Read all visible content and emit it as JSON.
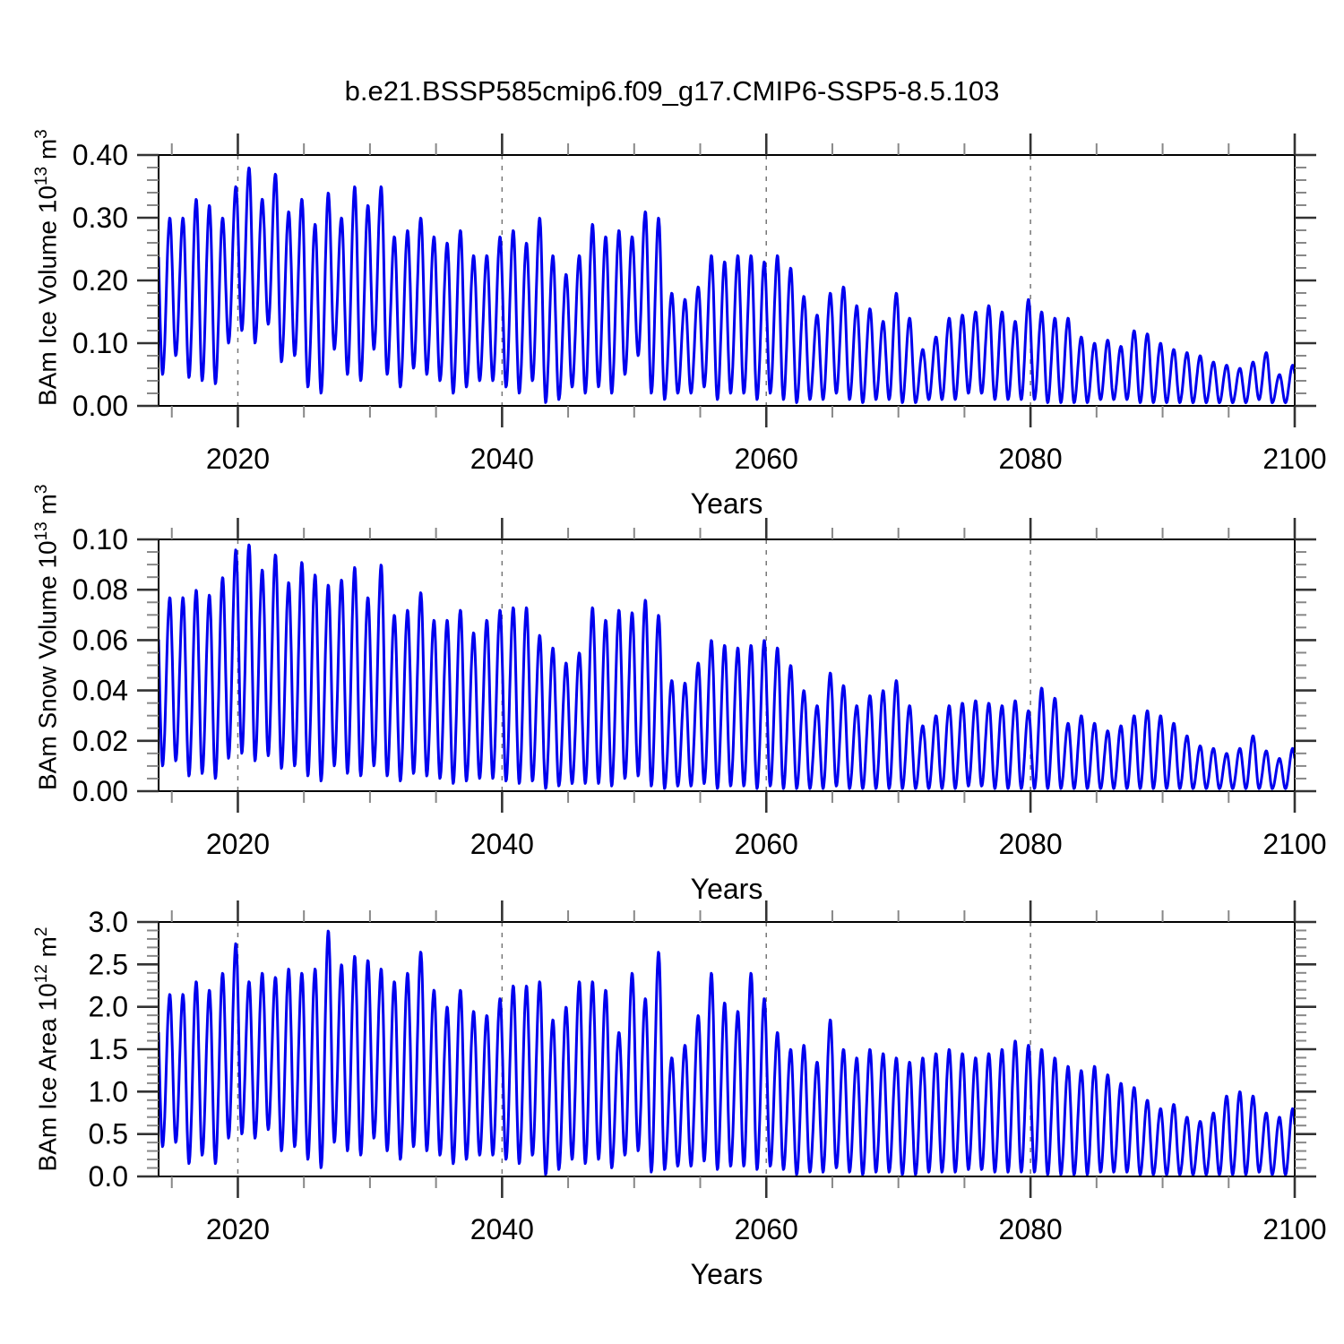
{
  "title": "b.e21.BSSP585cmip6.f09_g17.CMIP6-SSP5-8.5.103",
  "style": {
    "line_color": "#0000EE",
    "frame_color": "#000000",
    "grid_color": "#777777",
    "major_tick_color": "#333333",
    "minor_tick_color": "#888888",
    "text_color": "#000000"
  },
  "chart_data": [
    {
      "type": "line",
      "ylabel": {
        "base": "BAm Ice Volume 10",
        "exp": "13",
        "unit": " m",
        "unit_exp": "3"
      },
      "xlabel": "Years",
      "x_range": [
        2014,
        2100
      ],
      "y_range": [
        0.0,
        0.4
      ],
      "x_ticks": [
        2020,
        2040,
        2060,
        2080,
        2100
      ],
      "x_tick_labels": [
        "2020",
        "2040",
        "2060",
        "2080",
        "2100"
      ],
      "x_minor_step": 5,
      "grid_x": [
        2020,
        2040,
        2060,
        2080
      ],
      "y_tick_values": [
        0.0,
        0.1,
        0.2,
        0.3,
        0.4
      ],
      "y_tick_labels": [
        "0.00",
        "0.10",
        "0.20",
        "0.30",
        "0.40"
      ],
      "y_minor_step": 0.02,
      "annual_cycle": {
        "start_year": 2014,
        "trough_phase": 0.3,
        "peak_phase": 0.85,
        "annual_max": [
          0.3,
          0.3,
          0.33,
          0.32,
          0.3,
          0.35,
          0.38,
          0.33,
          0.37,
          0.31,
          0.33,
          0.29,
          0.34,
          0.3,
          0.35,
          0.32,
          0.35,
          0.27,
          0.28,
          0.3,
          0.27,
          0.26,
          0.28,
          0.24,
          0.24,
          0.27,
          0.28,
          0.26,
          0.3,
          0.24,
          0.21,
          0.24,
          0.29,
          0.27,
          0.28,
          0.27,
          0.31,
          0.3,
          0.18,
          0.17,
          0.19,
          0.24,
          0.23,
          0.24,
          0.24,
          0.23,
          0.24,
          0.22,
          0.175,
          0.145,
          0.18,
          0.19,
          0.16,
          0.155,
          0.135,
          0.18,
          0.14,
          0.09,
          0.11,
          0.14,
          0.145,
          0.15,
          0.16,
          0.15,
          0.135,
          0.17,
          0.15,
          0.14,
          0.14,
          0.11,
          0.1,
          0.105,
          0.095,
          0.12,
          0.115,
          0.1,
          0.09,
          0.085,
          0.08,
          0.07,
          0.065,
          0.06,
          0.07,
          0.085,
          0.05,
          0.065,
          0.05
        ],
        "annual_min": [
          0.05,
          0.08,
          0.045,
          0.04,
          0.035,
          0.1,
          0.12,
          0.1,
          0.13,
          0.07,
          0.08,
          0.03,
          0.02,
          0.09,
          0.05,
          0.04,
          0.09,
          0.05,
          0.03,
          0.06,
          0.05,
          0.04,
          0.02,
          0.03,
          0.04,
          0.04,
          0.03,
          0.02,
          0.04,
          0.005,
          0.01,
          0.03,
          0.02,
          0.03,
          0.02,
          0.05,
          0.08,
          0.02,
          0.01,
          0.02,
          0.02,
          0.03,
          0.01,
          0.02,
          0.02,
          0.01,
          0.02,
          0.01,
          0.005,
          0.01,
          0.01,
          0.02,
          0.01,
          0.005,
          0.01,
          0.01,
          0.005,
          0.005,
          0.01,
          0.01,
          0.01,
          0.02,
          0.02,
          0.01,
          0.01,
          0.01,
          0.01,
          0.005,
          0.005,
          0.005,
          0.005,
          0.01,
          0.01,
          0.01,
          0.005,
          0.005,
          0.005,
          0.005,
          0.005,
          0.005,
          0.005,
          0.005,
          0.005,
          0.01,
          0.005,
          0.005,
          0.01
        ]
      }
    },
    {
      "type": "line",
      "ylabel": {
        "base": "BAm Snow Volume 10",
        "exp": "13",
        "unit": " m",
        "unit_exp": "3"
      },
      "xlabel": "Years",
      "x_range": [
        2014,
        2100
      ],
      "y_range": [
        0.0,
        0.1
      ],
      "x_ticks": [
        2020,
        2040,
        2060,
        2080,
        2100
      ],
      "x_tick_labels": [
        "2020",
        "2040",
        "2060",
        "2080",
        "2100"
      ],
      "x_minor_step": 5,
      "grid_x": [
        2020,
        2040,
        2060,
        2080
      ],
      "y_tick_values": [
        0.0,
        0.02,
        0.04,
        0.06,
        0.08,
        0.1
      ],
      "y_tick_labels": [
        "0.00",
        "0.02",
        "0.04",
        "0.06",
        "0.08",
        "0.10"
      ],
      "y_minor_step": 0.005,
      "annual_cycle": {
        "start_year": 2014,
        "trough_phase": 0.3,
        "peak_phase": 0.85,
        "annual_max": [
          0.077,
          0.077,
          0.08,
          0.078,
          0.085,
          0.096,
          0.098,
          0.088,
          0.094,
          0.083,
          0.091,
          0.086,
          0.082,
          0.084,
          0.089,
          0.077,
          0.09,
          0.07,
          0.072,
          0.079,
          0.068,
          0.068,
          0.072,
          0.063,
          0.068,
          0.072,
          0.073,
          0.073,
          0.062,
          0.057,
          0.051,
          0.055,
          0.073,
          0.068,
          0.072,
          0.071,
          0.076,
          0.07,
          0.044,
          0.043,
          0.051,
          0.06,
          0.058,
          0.057,
          0.058,
          0.06,
          0.057,
          0.05,
          0.04,
          0.034,
          0.047,
          0.042,
          0.034,
          0.038,
          0.04,
          0.044,
          0.034,
          0.026,
          0.03,
          0.034,
          0.035,
          0.036,
          0.035,
          0.034,
          0.036,
          0.032,
          0.041,
          0.037,
          0.027,
          0.03,
          0.027,
          0.024,
          0.026,
          0.03,
          0.032,
          0.03,
          0.027,
          0.022,
          0.018,
          0.017,
          0.015,
          0.017,
          0.022,
          0.016,
          0.013,
          0.017,
          0.013
        ],
        "annual_min": [
          0.01,
          0.012,
          0.006,
          0.007,
          0.005,
          0.013,
          0.015,
          0.012,
          0.014,
          0.009,
          0.01,
          0.006,
          0.004,
          0.01,
          0.007,
          0.006,
          0.01,
          0.006,
          0.004,
          0.007,
          0.006,
          0.005,
          0.003,
          0.004,
          0.005,
          0.005,
          0.004,
          0.003,
          0.004,
          0.001,
          0.002,
          0.003,
          0.003,
          0.003,
          0.002,
          0.005,
          0.006,
          0.002,
          0.001,
          0.002,
          0.002,
          0.003,
          0.001,
          0.002,
          0.002,
          0.001,
          0.002,
          0.001,
          0.001,
          0.001,
          0.001,
          0.002,
          0.001,
          0.001,
          0.001,
          0.001,
          0.001,
          0.001,
          0.001,
          0.001,
          0.001,
          0.002,
          0.002,
          0.001,
          0.001,
          0.001,
          0.001,
          0.001,
          0.001,
          0.001,
          0.001,
          0.001,
          0.001,
          0.001,
          0.001,
          0.001,
          0.001,
          0.001,
          0.001,
          0.001,
          0.001,
          0.001,
          0.001,
          0.001,
          0.001,
          0.001,
          0.001
        ]
      }
    },
    {
      "type": "line",
      "ylabel": {
        "base": "BAm Ice Area 10",
        "exp": "12",
        "unit": " m",
        "unit_exp": "2"
      },
      "xlabel": "Years",
      "x_range": [
        2014,
        2100
      ],
      "y_range": [
        0.0,
        3.0
      ],
      "x_ticks": [
        2020,
        2040,
        2060,
        2080,
        2100
      ],
      "x_tick_labels": [
        "2020",
        "2040",
        "2060",
        "2080",
        "2100"
      ],
      "x_minor_step": 5,
      "grid_x": [
        2020,
        2040,
        2060,
        2080
      ],
      "y_tick_values": [
        0.0,
        0.5,
        1.0,
        1.5,
        2.0,
        2.5,
        3.0
      ],
      "y_tick_labels": [
        "0.0",
        "0.5",
        "1.0",
        "1.5",
        "2.0",
        "2.5",
        "3.0"
      ],
      "y_minor_step": 0.1,
      "annual_cycle": {
        "start_year": 2014,
        "trough_phase": 0.3,
        "peak_phase": 0.85,
        "annual_max": [
          2.15,
          2.15,
          2.3,
          2.2,
          2.4,
          2.75,
          2.3,
          2.4,
          2.35,
          2.45,
          2.4,
          2.45,
          2.9,
          2.5,
          2.6,
          2.55,
          2.45,
          2.3,
          2.4,
          2.65,
          2.2,
          2.0,
          2.2,
          1.95,
          1.9,
          2.1,
          2.25,
          2.25,
          2.3,
          1.85,
          2.0,
          2.3,
          2.3,
          2.2,
          1.7,
          2.4,
          2.1,
          2.65,
          1.4,
          1.55,
          1.9,
          2.4,
          2.05,
          1.95,
          2.4,
          2.1,
          1.7,
          1.5,
          1.55,
          1.35,
          1.85,
          1.5,
          1.4,
          1.5,
          1.45,
          1.4,
          1.35,
          1.4,
          1.45,
          1.5,
          1.45,
          1.4,
          1.45,
          1.5,
          1.6,
          1.55,
          1.5,
          1.4,
          1.3,
          1.25,
          1.3,
          1.2,
          1.1,
          1.05,
          0.9,
          0.8,
          0.85,
          0.7,
          0.65,
          0.75,
          0.95,
          1.0,
          0.95,
          0.75,
          0.7,
          0.8,
          0.65
        ],
        "annual_min": [
          0.35,
          0.4,
          0.15,
          0.25,
          0.15,
          0.45,
          0.5,
          0.45,
          0.55,
          0.3,
          0.35,
          0.2,
          0.1,
          0.4,
          0.3,
          0.25,
          0.45,
          0.3,
          0.2,
          0.35,
          0.3,
          0.25,
          0.15,
          0.2,
          0.25,
          0.25,
          0.2,
          0.15,
          0.25,
          0.02,
          0.08,
          0.2,
          0.15,
          0.2,
          0.1,
          0.25,
          0.3,
          0.05,
          0.08,
          0.12,
          0.12,
          0.18,
          0.08,
          0.12,
          0.12,
          0.08,
          0.12,
          0.08,
          0.02,
          0.05,
          0.05,
          0.1,
          0.05,
          0.02,
          0.05,
          0.05,
          0.02,
          0.02,
          0.05,
          0.05,
          0.05,
          0.08,
          0.08,
          0.05,
          0.05,
          0.05,
          0.05,
          0.02,
          0.02,
          0.02,
          0.02,
          0.05,
          0.05,
          0.05,
          0.02,
          0.02,
          0.02,
          0.02,
          0.02,
          0.02,
          0.02,
          0.02,
          0.02,
          0.05,
          0.02,
          0.02,
          0.05
        ]
      }
    }
  ]
}
